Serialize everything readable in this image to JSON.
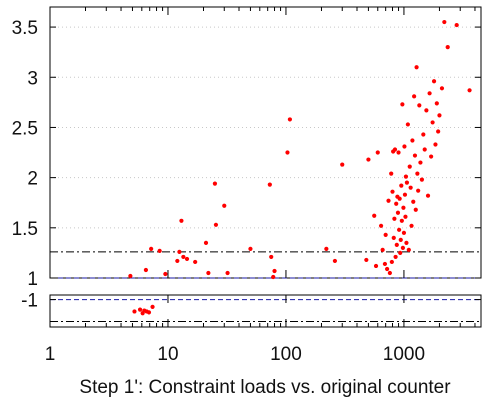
{
  "chart_data": {
    "type": "scatter",
    "title": "",
    "xlabel": "Step 1': Constraint loads vs. original counter",
    "ylabel": "",
    "x_scale": "log",
    "x_ticks": [
      1,
      10,
      100,
      1000
    ],
    "x_tick_labels": [
      "1",
      "10",
      "100",
      "1000"
    ],
    "xlim": [
      1,
      4500
    ],
    "upper_panel": {
      "ylim": [
        1,
        3.7
      ],
      "y_ticks": [
        1,
        1.5,
        2,
        2.5,
        3,
        3.5
      ],
      "y_tick_labels": [
        "1",
        "1.5",
        "2",
        "2.5",
        "3",
        "3.5"
      ],
      "reference_lines": [
        {
          "y": 1.26,
          "style": "dash-dot",
          "color": "#000000"
        },
        {
          "y": 1.0,
          "style": "dashed",
          "color": "#1a1aa6"
        }
      ],
      "grid": "dotted-horizontal"
    },
    "lower_panel": {
      "ylim": [
        -1.3,
        -0.95
      ],
      "y_ticks": [
        -1
      ],
      "y_tick_labels": [
        "-1"
      ],
      "reference_lines": [
        {
          "y": -1.0,
          "style": "dashed",
          "color": "#1a1aa6"
        },
        {
          "y": -1.24,
          "style": "dash-dot",
          "color": "#000000"
        }
      ]
    },
    "marker_color": "#ff0000",
    "series": [
      {
        "points_upper": [
          [
            4.8,
            1.02
          ],
          [
            6.5,
            1.08
          ],
          [
            7.2,
            1.29
          ],
          [
            8.5,
            1.27
          ],
          [
            9.5,
            1.04
          ],
          [
            12.0,
            1.17
          ],
          [
            12.5,
            1.26
          ],
          [
            13.0,
            1.57
          ],
          [
            13.5,
            1.21
          ],
          [
            14.5,
            1.19
          ],
          [
            17.0,
            1.16
          ],
          [
            21.0,
            1.35
          ],
          [
            22.0,
            1.05
          ],
          [
            25.0,
            1.94
          ],
          [
            25.5,
            1.53
          ],
          [
            30.0,
            1.72
          ],
          [
            32.0,
            1.05
          ],
          [
            50.0,
            1.29
          ],
          [
            73.0,
            1.93
          ],
          [
            75.0,
            1.21
          ],
          [
            78.0,
            1.01
          ],
          [
            80.0,
            1.07
          ],
          [
            103.0,
            2.25
          ],
          [
            108.0,
            2.58
          ],
          [
            220.0,
            1.29
          ],
          [
            260.0,
            1.17
          ],
          [
            300.0,
            2.13
          ],
          [
            480.0,
            1.18
          ],
          [
            500.0,
            2.18
          ],
          [
            560.0,
            1.62
          ],
          [
            580.0,
            1.12
          ],
          [
            600.0,
            2.25
          ],
          [
            640.0,
            1.52
          ],
          [
            660.0,
            1.28
          ],
          [
            690.0,
            1.14
          ],
          [
            700.0,
            1.43
          ],
          [
            720.0,
            1.09
          ],
          [
            740.0,
            1.77
          ],
          [
            760.0,
            1.05
          ],
          [
            780.0,
            2.04
          ],
          [
            790.0,
            1.16
          ],
          [
            800.0,
            1.86
          ],
          [
            810.0,
            2.26
          ],
          [
            820.0,
            1.4
          ],
          [
            830.0,
            1.59
          ],
          [
            840.0,
            2.28
          ],
          [
            850.0,
            1.21
          ],
          [
            860.0,
            1.74
          ],
          [
            870.0,
            1.33
          ],
          [
            880.0,
            1.81
          ],
          [
            890.0,
            1.65
          ],
          [
            900.0,
            2.25
          ],
          [
            910.0,
            1.48
          ],
          [
            920.0,
            1.79
          ],
          [
            930.0,
            1.25
          ],
          [
            940.0,
            1.38
          ],
          [
            950.0,
            1.92
          ],
          [
            960.0,
            1.57
          ],
          [
            970.0,
            2.73
          ],
          [
            980.0,
            1.3
          ],
          [
            990.0,
            1.7
          ],
          [
            1000.0,
            1.45
          ],
          [
            1010.0,
            2.31
          ],
          [
            1020.0,
            1.83
          ],
          [
            1030.0,
            1.61
          ],
          [
            1040.0,
            2.01
          ],
          [
            1050.0,
            1.35
          ],
          [
            1060.0,
            1.95
          ],
          [
            1080.0,
            2.53
          ],
          [
            1100.0,
            1.28
          ],
          [
            1120.0,
            2.11
          ],
          [
            1140.0,
            1.9
          ],
          [
            1160.0,
            1.52
          ],
          [
            1180.0,
            2.37
          ],
          [
            1200.0,
            1.76
          ],
          [
            1220.0,
            2.81
          ],
          [
            1240.0,
            2.22
          ],
          [
            1260.0,
            1.68
          ],
          [
            1280.0,
            3.1
          ],
          [
            1300.0,
            2.04
          ],
          [
            1320.0,
            1.87
          ],
          [
            1350.0,
            2.72
          ],
          [
            1380.0,
            2.15
          ],
          [
            1420.0,
            1.98
          ],
          [
            1460.0,
            2.43
          ],
          [
            1500.0,
            2.28
          ],
          [
            1550.0,
            2.67
          ],
          [
            1600.0,
            1.82
          ],
          [
            1650.0,
            2.84
          ],
          [
            1700.0,
            2.21
          ],
          [
            1750.0,
            2.55
          ],
          [
            1800.0,
            2.96
          ],
          [
            1850.0,
            2.33
          ],
          [
            1900.0,
            2.74
          ],
          [
            1950.0,
            2.46
          ],
          [
            2000.0,
            2.62
          ],
          [
            2100.0,
            2.89
          ],
          [
            2200.0,
            3.55
          ],
          [
            2350.0,
            3.3
          ],
          [
            2800.0,
            3.52
          ],
          [
            3600.0,
            2.87
          ]
        ],
        "points_lower": [
          [
            5.2,
            -1.13
          ],
          [
            5.8,
            -1.11
          ],
          [
            6.1,
            -1.15
          ],
          [
            6.3,
            -1.12
          ],
          [
            6.6,
            -1.13
          ],
          [
            6.9,
            -1.14
          ],
          [
            7.4,
            -1.08
          ]
        ]
      }
    ]
  }
}
